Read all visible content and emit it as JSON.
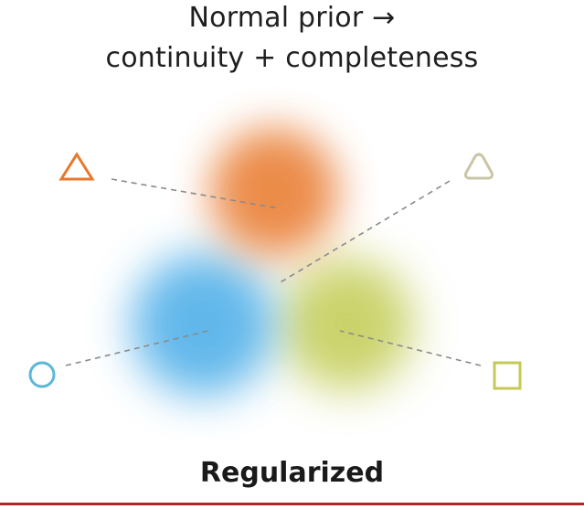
{
  "title": {
    "line1": "Normal prior →",
    "line2": "continuity + completeness"
  },
  "caption": "Regularized",
  "colors": {
    "orange": "#e8782c",
    "blue": "#3aa6e6",
    "green": "#b9c43a",
    "beige": "#c9c5a6",
    "circle_outline": "#5ab8da",
    "square_outline": "#c5c957",
    "dash": "#8a8a8a",
    "rule": "#b3232a"
  }
}
